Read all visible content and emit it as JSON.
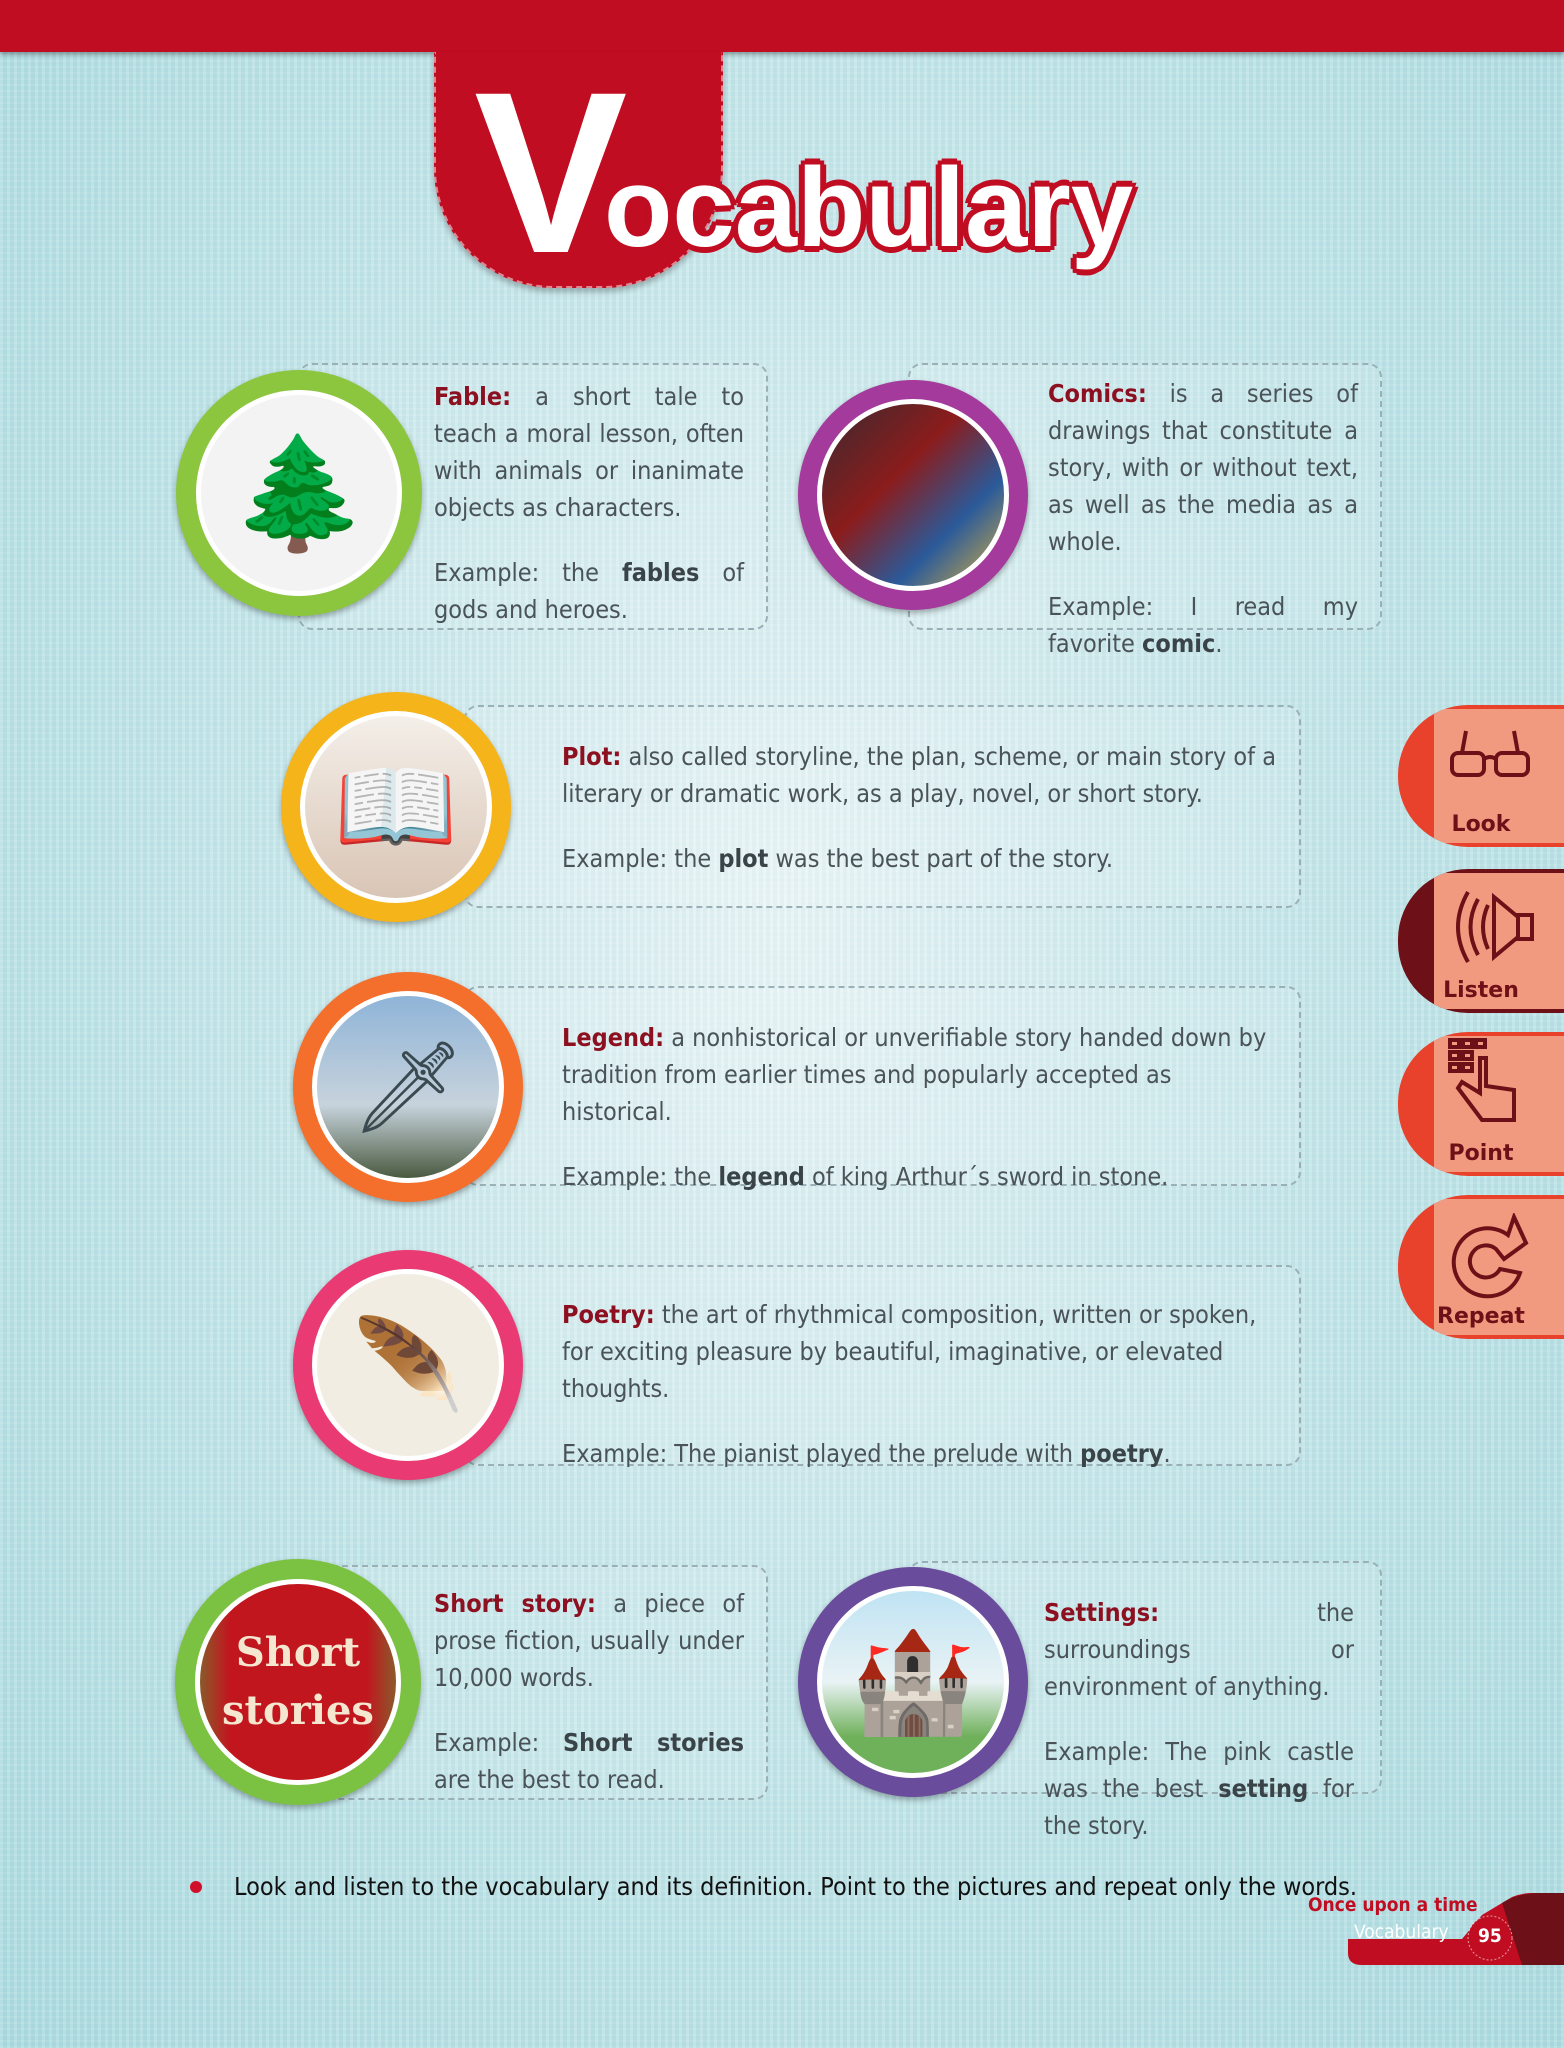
{
  "title": {
    "first_letter": "V",
    "rest": "ocabulary"
  },
  "entries": [
    {
      "term": "Fable:",
      "definition": "a short tale to teach a moral lesson, often with animals or inanimate objects as characters.",
      "example_pre": "Example: the ",
      "example_bold": "fables",
      "example_post": " of gods and heroes.",
      "ring": "#8cc63f"
    },
    {
      "term": "Comics:",
      "definition": "is a series of drawings that constitute a story, with or without text, as well as the media as a whole.",
      "example_pre": "Example: I read my favorite ",
      "example_bold": "comic",
      "example_post": ".",
      "ring": "#a43b9c"
    },
    {
      "term": "Plot:",
      "definition": "also called storyline, the plan, scheme, or main story of a literary or dramatic work, as a play, novel, or short story.",
      "example_pre": "Example: the ",
      "example_bold": "plot",
      "example_post": " was the best part of the story.",
      "ring": "#f4b41a"
    },
    {
      "term": "Legend:",
      "definition": "a nonhistorical or unverifiable story handed down by tradition from earlier times and popularly accepted as historical.",
      "example_pre": "Example: the ",
      "example_bold": "legend",
      "example_post": " of king Arthur´s sword in stone.",
      "ring": "#f36f2b"
    },
    {
      "term": "Poetry:",
      "definition": "the art of rhythmical composition, written or spoken, for exciting pleasure by beautiful, imaginative, or elevated thoughts.",
      "example_pre": "Example: The pianist played the prelude with ",
      "example_bold": "poetry",
      "example_post": ".",
      "ring": "#ea3a73"
    },
    {
      "term": "Short story:",
      "definition": "a piece of prose fiction, usually under 10,000 words.",
      "example_pre": "Example: ",
      "example_bold": "Short stories",
      "example_post": " are the best to read.",
      "ring": "#7cc242",
      "image_text": "Short stories"
    },
    {
      "term": "Settings:",
      "definition": "the surroundings or environment of anything.",
      "example_pre": "Example: The pink castle was the best ",
      "example_bold": "setting",
      "example_post": " for the story.",
      "ring": "#6a4c9c"
    }
  ],
  "side_buttons": [
    {
      "label": "Look",
      "icon": "glasses-icon"
    },
    {
      "label": "Listen",
      "icon": "speaker-icon"
    },
    {
      "label": "Point",
      "icon": "pointing-hand-icon"
    },
    {
      "label": "Repeat",
      "icon": "repeat-arrow-icon"
    }
  ],
  "instruction": "Look and listen to the vocabulary and its definition. Point to the pictures and repeat only the words.",
  "footer": {
    "unit": "Once upon a time",
    "section": "Vocabulary",
    "page": "95"
  },
  "colors": {
    "brand_red": "#c00d22",
    "dark_red": "#6e1018",
    "tab_salmon": "#f29a7f"
  }
}
